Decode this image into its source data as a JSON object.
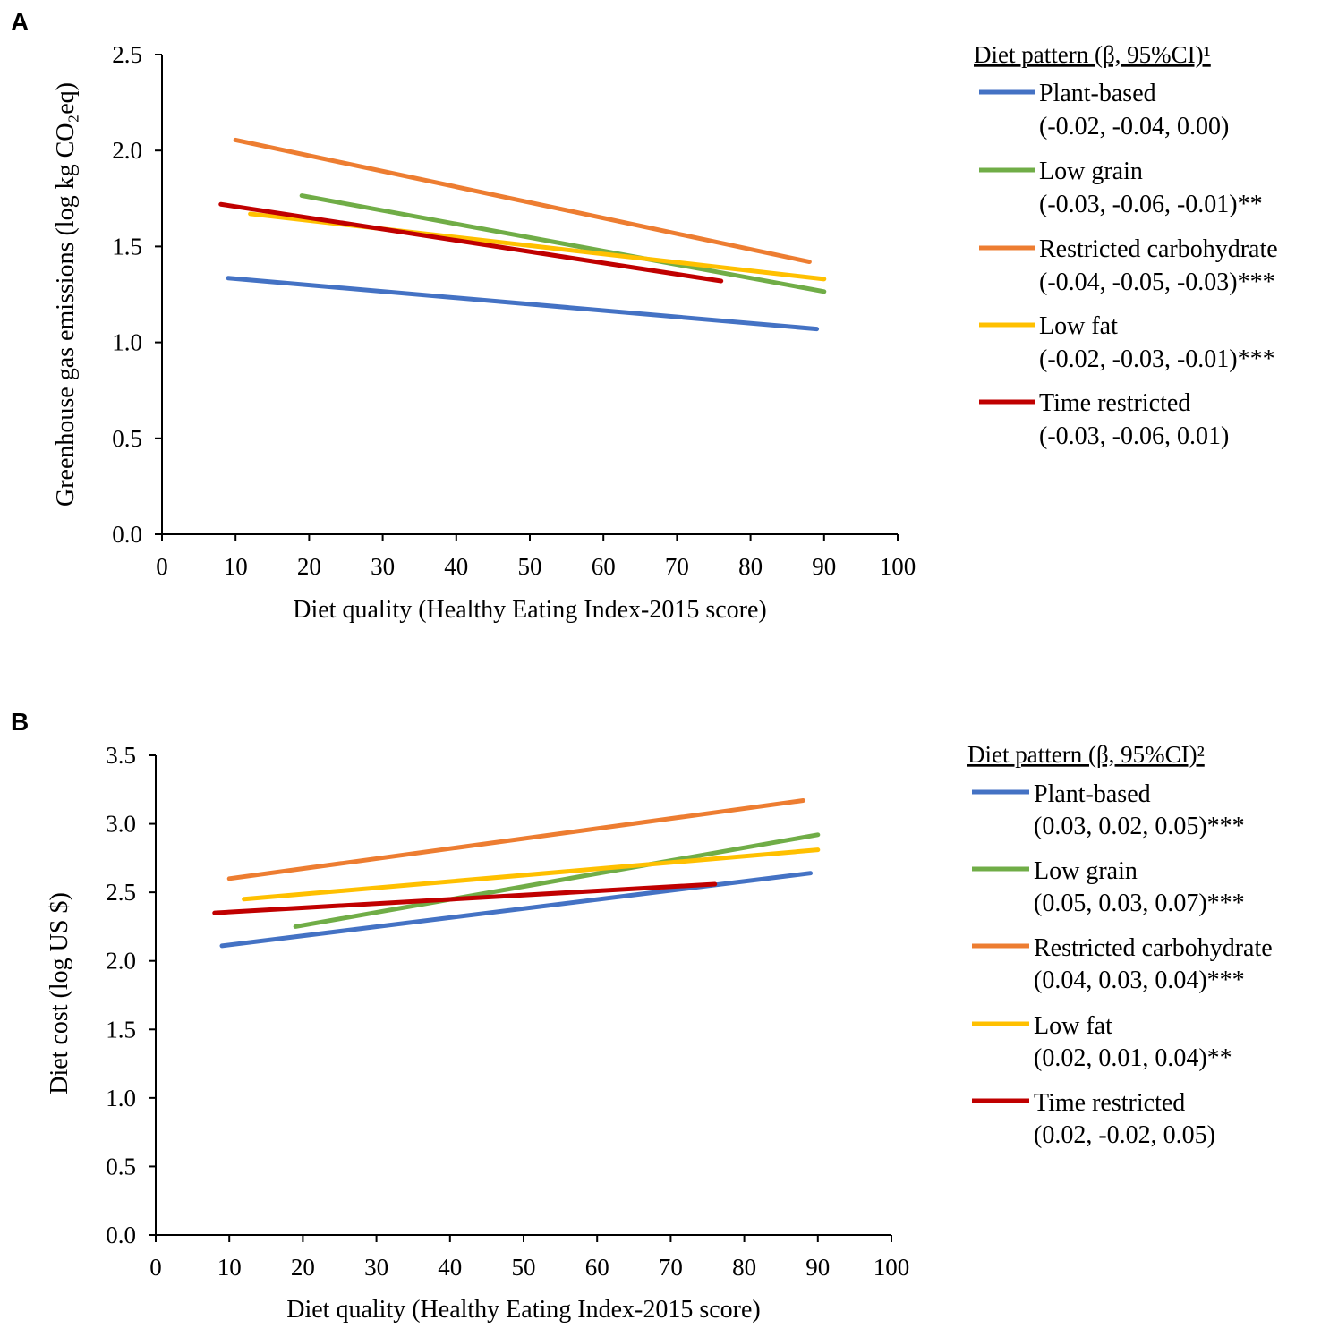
{
  "chart_data": [
    {
      "panel": "A",
      "type": "line",
      "xlabel": "Diet quality (Healthy Eating Index-2015 score)",
      "ylabel": "Greenhouse gas emissions (log kg CO₂eq)",
      "xlim": [
        0,
        100
      ],
      "ylim": [
        0,
        2.5
      ],
      "xticks": [
        "0",
        "10",
        "20",
        "30",
        "40",
        "50",
        "60",
        "70",
        "80",
        "90",
        "100"
      ],
      "yticks": [
        "0.0",
        "0.5",
        "1.0",
        "1.5",
        "2.0",
        "2.5"
      ],
      "legend_title": "Diet pattern (β, 95%CI)¹",
      "legend_position": "right",
      "series": [
        {
          "name": "Plant-based",
          "stat": "(-0.02, -0.04, 0.00)",
          "color": "#4472C4",
          "x": [
            9,
            89
          ],
          "y": [
            1.335,
            1.07
          ]
        },
        {
          "name": "Low grain",
          "stat": "(-0.03, -0.06, -0.01)**",
          "color": "#70AD47",
          "x": [
            19,
            90
          ],
          "y": [
            1.765,
            1.265
          ]
        },
        {
          "name": "Restricted carbohydrate",
          "stat": "(-0.04, -0.05, -0.03)***",
          "color": "#ED7D31",
          "x": [
            10,
            88
          ],
          "y": [
            2.055,
            1.42
          ]
        },
        {
          "name": "Low fat",
          "stat": "(-0.02, -0.03, -0.01)***",
          "color": "#FFC000",
          "x": [
            12,
            90
          ],
          "y": [
            1.67,
            1.33
          ]
        },
        {
          "name": "Time restricted",
          "stat": "(-0.03, -0.06, 0.01)",
          "color": "#C00000",
          "x": [
            8,
            76
          ],
          "y": [
            1.72,
            1.32
          ]
        }
      ]
    },
    {
      "panel": "B",
      "type": "line",
      "xlabel": "Diet quality (Healthy Eating Index-2015 score)",
      "ylabel": "Diet cost (log US $)",
      "xlim": [
        0,
        100
      ],
      "ylim": [
        0,
        3.5
      ],
      "xticks": [
        "0",
        "10",
        "20",
        "30",
        "40",
        "50",
        "60",
        "70",
        "80",
        "90",
        "100"
      ],
      "yticks": [
        "0.0",
        "0.5",
        "1.0",
        "1.5",
        "2.0",
        "2.5",
        "3.0",
        "3.5"
      ],
      "legend_title": "Diet pattern (β, 95%CI)²",
      "legend_position": "right",
      "series": [
        {
          "name": "Plant-based",
          "stat": "(0.03, 0.02, 0.05)***",
          "color": "#4472C4",
          "x": [
            9,
            89
          ],
          "y": [
            2.11,
            2.64
          ]
        },
        {
          "name": "Low grain",
          "stat": "(0.05, 0.03, 0.07)***",
          "color": "#70AD47",
          "x": [
            19,
            90
          ],
          "y": [
            2.25,
            2.92
          ]
        },
        {
          "name": "Restricted carbohydrate",
          "stat": "(0.04, 0.03, 0.04)***",
          "color": "#ED7D31",
          "x": [
            10,
            88
          ],
          "y": [
            2.6,
            3.17
          ]
        },
        {
          "name": "Low fat",
          "stat": "(0.02, 0.01, 0.04)**",
          "color": "#FFC000",
          "x": [
            12,
            90
          ],
          "y": [
            2.45,
            2.81
          ]
        },
        {
          "name": "Time restricted",
          "stat": "(0.02, -0.02, 0.05)",
          "color": "#C00000",
          "x": [
            8,
            76
          ],
          "y": [
            2.35,
            2.56
          ]
        }
      ]
    }
  ]
}
